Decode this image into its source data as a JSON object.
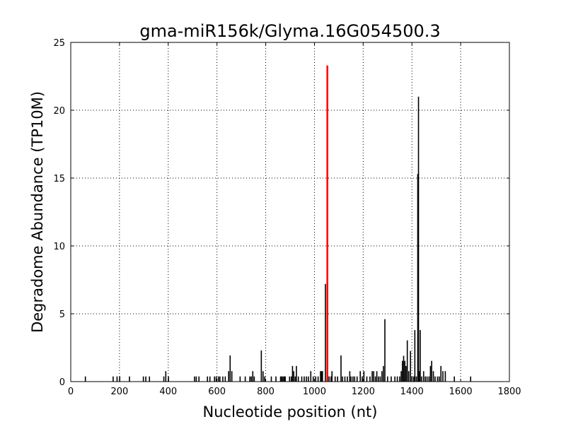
{
  "chart_data": {
    "type": "bar",
    "title": "gma-miR156k/Glyma.16G054500.3",
    "xlabel": "Nucleotide position (nt)",
    "ylabel": "Degradome Abundance (TP10M)",
    "xlim": [
      0,
      1800
    ],
    "ylim": [
      0,
      25
    ],
    "xticks": [
      0,
      200,
      400,
      600,
      800,
      1000,
      1200,
      1400,
      1600,
      1800
    ],
    "yticks": [
      0,
      5,
      10,
      15,
      20,
      25
    ],
    "grid": true,
    "colors": {
      "default": "#000000",
      "highlight": "#ff0000"
    },
    "highlight": {
      "x": 1053,
      "y": 23.3
    },
    "series": [
      {
        "values": [
          [
            60,
            0.38
          ],
          [
            174,
            0.38
          ],
          [
            190,
            0.38
          ],
          [
            201,
            0.38
          ],
          [
            241,
            0.38
          ],
          [
            298,
            0.38
          ],
          [
            308,
            0.38
          ],
          [
            323,
            0.38
          ],
          [
            382,
            0.38
          ],
          [
            390,
            0.77
          ],
          [
            401,
            0.38
          ],
          [
            508,
            0.38
          ],
          [
            515,
            0.38
          ],
          [
            526,
            0.38
          ],
          [
            561,
            0.38
          ],
          [
            571,
            0.38
          ],
          [
            590,
            0.38
          ],
          [
            597,
            0.38
          ],
          [
            606,
            0.38
          ],
          [
            612,
            0.38
          ],
          [
            624,
            0.38
          ],
          [
            634,
            0.38
          ],
          [
            648,
            0.77
          ],
          [
            654,
            1.93
          ],
          [
            661,
            0.77
          ],
          [
            695,
            0.38
          ],
          [
            716,
            0.38
          ],
          [
            735,
            0.38
          ],
          [
            741,
            0.38
          ],
          [
            747,
            0.77
          ],
          [
            753,
            0.38
          ],
          [
            782,
            2.3
          ],
          [
            789,
            0.77
          ],
          [
            796,
            0.38
          ],
          [
            823,
            0.38
          ],
          [
            842,
            0.38
          ],
          [
            861,
            0.38
          ],
          [
            866,
            0.38
          ],
          [
            871,
            0.38
          ],
          [
            876,
            0.38
          ],
          [
            880,
            0.38
          ],
          [
            898,
            0.38
          ],
          [
            905,
            0.38
          ],
          [
            910,
            1.15
          ],
          [
            915,
            0.77
          ],
          [
            921,
            0.38
          ],
          [
            926,
            1.15
          ],
          [
            934,
            0.38
          ],
          [
            948,
            0.38
          ],
          [
            958,
            0.38
          ],
          [
            967,
            0.38
          ],
          [
            975,
            0.38
          ],
          [
            985,
            0.77
          ],
          [
            995,
            0.38
          ],
          [
            1005,
            0.38
          ],
          [
            1015,
            0.38
          ],
          [
            1025,
            0.77
          ],
          [
            1029,
            0.77
          ],
          [
            1033,
            0.77
          ],
          [
            1045,
            7.2
          ],
          [
            1060,
            0.38
          ],
          [
            1068,
            0.38
          ],
          [
            1072,
            0.77
          ],
          [
            1085,
            0.38
          ],
          [
            1095,
            0.38
          ],
          [
            1109,
            1.93
          ],
          [
            1115,
            0.38
          ],
          [
            1125,
            0.38
          ],
          [
            1135,
            0.38
          ],
          [
            1145,
            0.77
          ],
          [
            1150,
            0.38
          ],
          [
            1158,
            0.38
          ],
          [
            1165,
            0.38
          ],
          [
            1175,
            0.38
          ],
          [
            1188,
            0.77
          ],
          [
            1196,
            0.38
          ],
          [
            1203,
            0.77
          ],
          [
            1215,
            0.38
          ],
          [
            1228,
            0.38
          ],
          [
            1237,
            0.77
          ],
          [
            1243,
            0.77
          ],
          [
            1250,
            0.38
          ],
          [
            1256,
            0.77
          ],
          [
            1263,
            0.38
          ],
          [
            1270,
            0.38
          ],
          [
            1277,
            0.77
          ],
          [
            1283,
            1.15
          ],
          [
            1289,
            4.6
          ],
          [
            1300,
            0.38
          ],
          [
            1315,
            0.38
          ],
          [
            1330,
            0.38
          ],
          [
            1340,
            0.38
          ],
          [
            1350,
            0.38
          ],
          [
            1356,
            0.77
          ],
          [
            1361,
            1.53
          ],
          [
            1366,
            1.9
          ],
          [
            1371,
            1.53
          ],
          [
            1376,
            1.15
          ],
          [
            1381,
            3.04
          ],
          [
            1387,
            0.77
          ],
          [
            1394,
            2.26
          ],
          [
            1400,
            0.38
          ],
          [
            1407,
            0.38
          ],
          [
            1412,
            3.8
          ],
          [
            1418,
            0.38
          ],
          [
            1424,
            15.3
          ],
          [
            1427,
            21.0
          ],
          [
            1431,
            0.77
          ],
          [
            1434,
            3.8
          ],
          [
            1440,
            0.38
          ],
          [
            1448,
            0.77
          ],
          [
            1455,
            0.38
          ],
          [
            1462,
            0.38
          ],
          [
            1470,
            0.38
          ],
          [
            1476,
            1.15
          ],
          [
            1481,
            1.53
          ],
          [
            1488,
            0.77
          ],
          [
            1495,
            0.38
          ],
          [
            1505,
            0.38
          ],
          [
            1512,
            0.38
          ],
          [
            1519,
            1.15
          ],
          [
            1527,
            0.77
          ],
          [
            1537,
            0.77
          ],
          [
            1574,
            0.38
          ],
          [
            1641,
            0.38
          ]
        ]
      }
    ]
  }
}
